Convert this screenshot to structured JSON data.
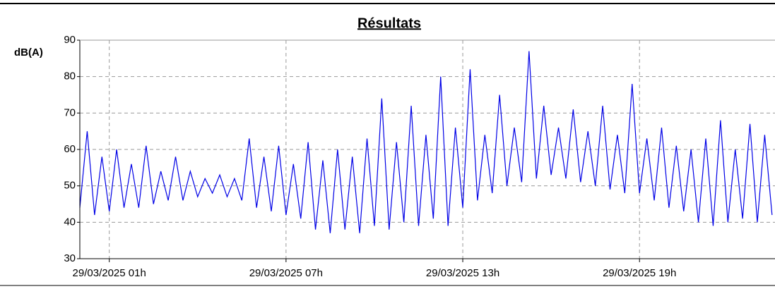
{
  "chart_data": {
    "type": "line",
    "title": "Résultats",
    "y_label": "dB(A)",
    "ylim": [
      30,
      90
    ],
    "yticks": [
      30,
      40,
      50,
      60,
      70,
      80,
      90
    ],
    "xlim": [
      0,
      23.6
    ],
    "xticks": [
      {
        "value": 1,
        "label": "29/03/2025 01h"
      },
      {
        "value": 7,
        "label": "29/03/2025 07h"
      },
      {
        "value": 13,
        "label": "29/03/2025 13h"
      },
      {
        "value": 19,
        "label": "29/03/2025 19h"
      }
    ],
    "grid": true,
    "x": [
      0,
      0.25,
      0.5,
      0.75,
      1,
      1.25,
      1.5,
      1.75,
      2,
      2.25,
      2.5,
      2.75,
      3,
      3.25,
      3.5,
      3.75,
      4,
      4.25,
      4.5,
      4.75,
      5,
      5.25,
      5.5,
      5.75,
      6,
      6.25,
      6.5,
      6.75,
      7,
      7.25,
      7.5,
      7.75,
      8,
      8.25,
      8.5,
      8.75,
      9,
      9.25,
      9.5,
      9.75,
      10,
      10.25,
      10.5,
      10.75,
      11,
      11.25,
      11.5,
      11.75,
      12,
      12.25,
      12.5,
      12.75,
      13,
      13.25,
      13.5,
      13.75,
      14,
      14.25,
      14.5,
      14.75,
      15,
      15.25,
      15.5,
      15.75,
      16,
      16.25,
      16.5,
      16.75,
      17,
      17.25,
      17.5,
      17.75,
      18,
      18.25,
      18.5,
      18.75,
      19,
      19.25,
      19.5,
      19.75,
      20,
      20.25,
      20.5,
      20.75,
      21,
      21.25,
      21.5,
      21.75,
      22,
      22.25,
      22.5,
      22.75,
      23,
      23.25,
      23.5
    ],
    "series": [
      {
        "color": "#0000e6",
        "values": [
          44,
          65,
          42,
          58,
          43,
          60,
          44,
          56,
          44,
          61,
          45,
          54,
          46,
          58,
          46,
          54,
          47,
          52,
          48,
          53,
          47,
          52,
          46,
          63,
          44,
          58,
          43,
          61,
          42,
          56,
          41,
          62,
          38,
          57,
          37,
          60,
          38,
          58,
          37,
          63,
          39,
          74,
          38,
          62,
          40,
          72,
          39,
          64,
          41,
          80,
          39,
          66,
          44,
          82,
          46,
          64,
          48,
          75,
          50,
          66,
          51,
          87,
          52,
          72,
          53,
          66,
          52,
          71,
          51,
          65,
          50,
          72,
          49,
          64,
          48,
          78,
          48,
          63,
          46,
          66,
          44,
          61,
          43,
          60,
          40,
          63,
          39,
          68,
          40,
          60,
          41,
          67,
          40,
          64,
          42
        ]
      }
    ]
  }
}
